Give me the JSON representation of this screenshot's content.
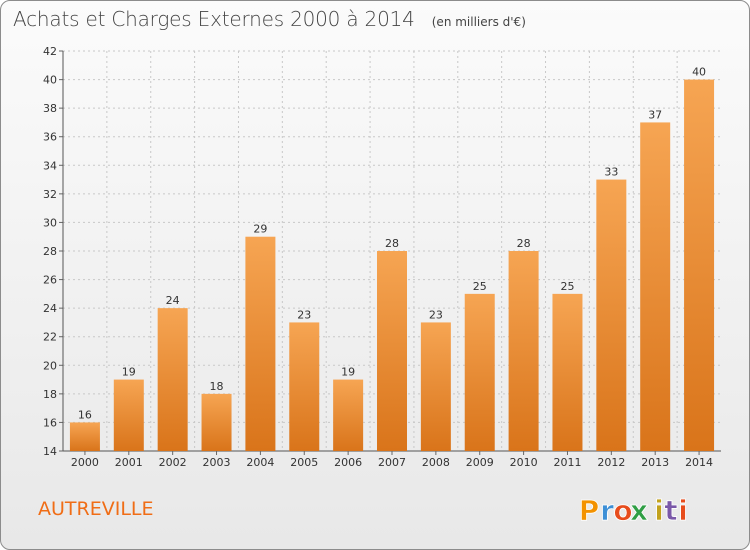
{
  "title": {
    "main": "Achats et Charges Externes 2000 à 2014",
    "sub": "(en milliers d'€)"
  },
  "place": "AUTREVILLE",
  "logo": {
    "text": "Proxiti",
    "colors": [
      "#f39200",
      "#3d8fd6",
      "#e74c1c",
      "#2f9e44",
      "#c2a21e",
      "#7a58a8",
      "#e74c1c"
    ]
  },
  "chart_data": {
    "type": "bar",
    "categories": [
      "2000",
      "2001",
      "2002",
      "2003",
      "2004",
      "2005",
      "2006",
      "2007",
      "2008",
      "2009",
      "2010",
      "2011",
      "2012",
      "2013",
      "2014"
    ],
    "values": [
      16,
      19,
      24,
      18,
      29,
      23,
      19,
      28,
      23,
      25,
      28,
      25,
      33,
      37,
      40
    ],
    "data_labels": [
      "16",
      "19",
      "24",
      "18",
      "29",
      "23",
      "19",
      "28",
      "23",
      "25",
      "28",
      "25",
      "33",
      "37",
      "40"
    ],
    "yticks": [
      "14",
      "16",
      "18",
      "20",
      "22",
      "24",
      "26",
      "28",
      "30",
      "32",
      "34",
      "36",
      "38",
      "40",
      "42"
    ],
    "ylim": [
      14,
      42
    ],
    "grid": true,
    "colors": {
      "bar_light": "#f6a553",
      "bar_dark": "#d9741a",
      "grid": "#c8c8c8"
    }
  }
}
